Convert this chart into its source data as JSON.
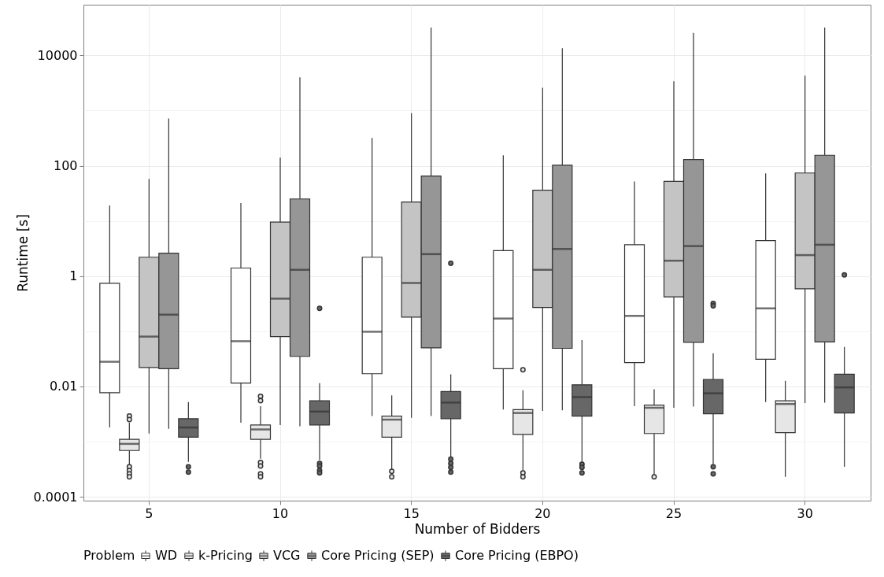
{
  "chart_data": {
    "type": "box",
    "xlabel": "Number of Bidders",
    "ylabel": "Runtime [s]",
    "legend_title": "Problem",
    "legend": "bottom",
    "grid": true,
    "log": "y",
    "categories": [
      "5",
      "10",
      "15",
      "20",
      "25",
      "30"
    ],
    "ylim": [
      8.5e-05,
      83000
    ],
    "yticks": [
      0.0001,
      {
        "value": 0.001,
        "label": null
      },
      0.01,
      {
        "value": 0.1,
        "label": null
      },
      1,
      {
        "value": 10,
        "label": null
      },
      100,
      {
        "value": 1000,
        "label": null
      },
      10000
    ],
    "series": [
      {
        "name": "WD",
        "color": "#ffffff",
        "boxes": [
          {
            "low": 0.0018,
            "q1": 0.0077,
            "median": 0.028,
            "q3": 0.74,
            "high": 19
          },
          {
            "low": 0.0022,
            "q1": 0.0115,
            "median": 0.066,
            "q3": 1.4,
            "high": 21
          },
          {
            "low": 0.0029,
            "q1": 0.017,
            "median": 0.098,
            "q3": 2.2,
            "high": 320
          },
          {
            "low": 0.0038,
            "q1": 0.021,
            "median": 0.17,
            "q3": 2.9,
            "high": 155
          },
          {
            "low": 0.0044,
            "q1": 0.027,
            "median": 0.19,
            "q3": 3.7,
            "high": 52
          },
          {
            "low": 0.0052,
            "q1": 0.031,
            "median": 0.26,
            "q3": 4.4,
            "high": 73
          }
        ]
      },
      {
        "name": "k-Pricing",
        "color": "#e6e6e6",
        "boxes": [
          {
            "low": 0.00037,
            "q1": 0.00069,
            "median": 0.00091,
            "q3": 0.0011,
            "high": 0.0022,
            "outliers": [
              0.0029,
              0.0025,
              0.00035,
              0.0003,
              0.00026,
              0.00023
            ]
          },
          {
            "low": 0.00049,
            "q1": 0.0011,
            "median": 0.00166,
            "q3": 0.002,
            "high": 0.0044,
            "outliers": [
              0.0066,
              0.0055,
              0.00042,
              0.00036,
              0.00026,
              0.00023
            ]
          },
          {
            "low": 0.00031,
            "q1": 0.0012,
            "median": 0.0025,
            "q3": 0.0029,
            "high": 0.0069,
            "outliers": [
              0.00029,
              0.00023
            ]
          },
          {
            "low": 0.0003,
            "q1": 0.00135,
            "median": 0.0033,
            "q3": 0.0038,
            "high": 0.0085,
            "outliers": [
              0.02,
              0.00027,
              0.00023
            ]
          },
          {
            "low": 0.00025,
            "q1": 0.0014,
            "median": 0.0041,
            "q3": 0.0046,
            "high": 0.0089,
            "outliers": [
              0.00023
            ]
          },
          {
            "low": 0.00023,
            "q1": 0.00145,
            "median": 0.0048,
            "q3": 0.0055,
            "high": 0.0126
          }
        ]
      },
      {
        "name": "VCG",
        "color": "#c4c4c4",
        "boxes": [
          {
            "low": 0.0014,
            "q1": 0.022,
            "median": 0.08,
            "q3": 2.2,
            "high": 58
          },
          {
            "low": 0.002,
            "q1": 0.08,
            "median": 0.39,
            "q3": 9.5,
            "high": 140
          },
          {
            "low": 0.0027,
            "q1": 0.18,
            "median": 0.75,
            "q3": 22,
            "high": 900
          },
          {
            "low": 0.0036,
            "q1": 0.27,
            "median": 1.3,
            "q3": 36,
            "high": 2600
          },
          {
            "low": 0.0041,
            "q1": 0.42,
            "median": 1.9,
            "q3": 52,
            "high": 3400
          },
          {
            "low": 0.005,
            "q1": 0.59,
            "median": 2.4,
            "q3": 74,
            "high": 4300
          }
        ]
      },
      {
        "name": "Core Pricing (SEP)",
        "color": "#969696",
        "boxes": [
          {
            "low": 0.0017,
            "q1": 0.021,
            "median": 0.2,
            "q3": 2.6,
            "high": 720
          },
          {
            "low": 0.0019,
            "q1": 0.035,
            "median": 1.3,
            "q3": 25,
            "high": 4000
          },
          {
            "low": 0.0029,
            "q1": 0.05,
            "median": 2.5,
            "q3": 65,
            "high": 32000
          },
          {
            "low": 0.0037,
            "q1": 0.049,
            "median": 3.1,
            "q3": 102,
            "high": 13500
          },
          {
            "low": 0.0043,
            "q1": 0.063,
            "median": 3.5,
            "q3": 130,
            "high": 25700
          },
          {
            "low": 0.0051,
            "q1": 0.064,
            "median": 3.7,
            "q3": 155,
            "high": 32000
          }
        ]
      },
      {
        "name": "Core Pricing (EBPO)",
        "color": "#676767",
        "boxes": [
          {
            "low": 0.00043,
            "q1": 0.0012,
            "median": 0.0018,
            "q3": 0.0026,
            "high": 0.0052,
            "outliers": [
              0.00035,
              0.00028
            ]
          },
          {
            "low": 0.00046,
            "q1": 0.002,
            "median": 0.0035,
            "q3": 0.0055,
            "high": 0.0115,
            "outliers": [
              0.26,
              0.0004,
              0.00036,
              0.0003,
              0.00027
            ]
          },
          {
            "low": 0.00052,
            "q1": 0.0026,
            "median": 0.0051,
            "q3": 0.0081,
            "high": 0.0166,
            "outliers": [
              1.7,
              0.00048,
              0.0004,
              0.00034,
              0.00028
            ]
          },
          {
            "low": 0.00043,
            "q1": 0.0029,
            "median": 0.0064,
            "q3": 0.0107,
            "high": 0.069,
            "outliers": [
              0.00039,
              0.00034,
              0.00027
            ]
          },
          {
            "low": 0.00039,
            "q1": 0.0032,
            "median": 0.0075,
            "q3": 0.0134,
            "high": 0.04,
            "outliers": [
              0.32,
              0.29,
              0.00035,
              0.00026
            ]
          },
          {
            "low": 0.00035,
            "q1": 0.0033,
            "median": 0.0096,
            "q3": 0.0166,
            "high": 0.052,
            "outliers": [
              1.05
            ]
          }
        ]
      }
    ]
  }
}
